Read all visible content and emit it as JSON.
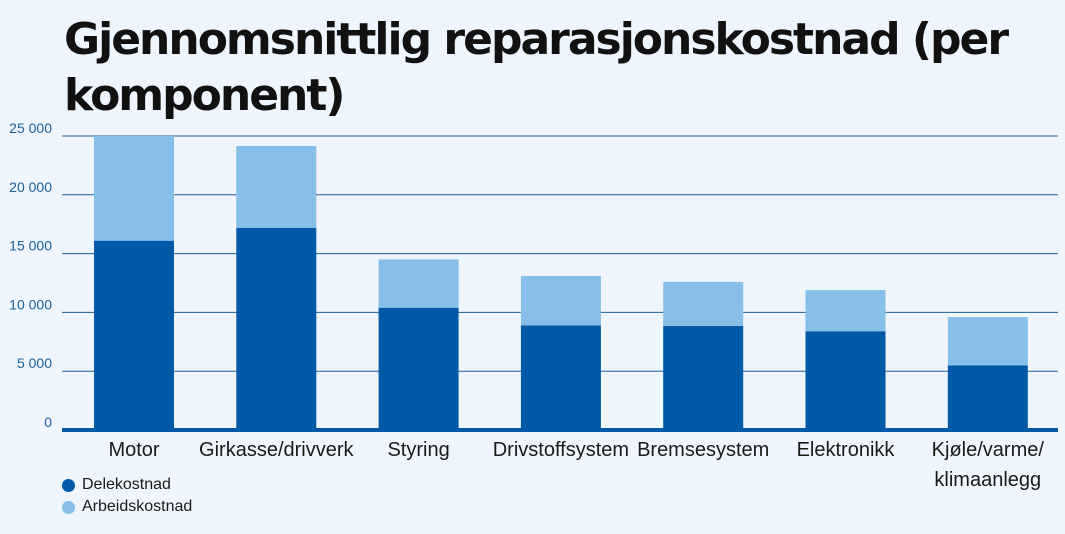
{
  "chart_data": {
    "type": "bar",
    "stacked": true,
    "title": "Gjennomsnittlig reparasjonskostnad (per komponent)",
    "categories": [
      "Motor",
      "Girkasse/drivverk",
      "Styring",
      "Drivstoffsystem",
      "Bremsesystem",
      "Elektronikk",
      "Kjøle/varme/ klimaanlegg"
    ],
    "series": [
      {
        "name": "Delekostnad",
        "color": "#005aa8",
        "values": [
          16100,
          17200,
          10400,
          8900,
          8850,
          8400,
          5500
        ]
      },
      {
        "name": "Arbeidskostnad",
        "color": "#87bfe8",
        "values": [
          8900,
          6950,
          4100,
          4200,
          3750,
          3500,
          4100
        ]
      }
    ],
    "ylim": [
      0,
      25000
    ],
    "yticks": [
      0,
      5000,
      10000,
      15000,
      20000,
      25000
    ],
    "ytick_labels": [
      "0",
      "5 000",
      "10 000",
      "15 000",
      "20 000",
      "25 000"
    ],
    "grid": true,
    "legend": "bottom-left",
    "xlabel": "",
    "ylabel": ""
  }
}
